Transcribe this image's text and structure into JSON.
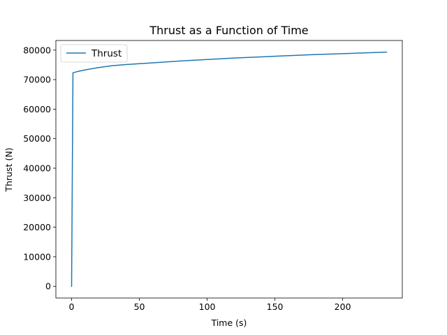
{
  "chart_data": {
    "type": "line",
    "title": "Thrust as a Function of Time",
    "xlabel": "Time (s)",
    "ylabel": "Thrust (N)",
    "xlim": [
      -11.6,
      244.0
    ],
    "ylim": [
      -3965,
      83250
    ],
    "grid": false,
    "legend_placement": "upper-left",
    "x_ticks": [
      0,
      50,
      100,
      150,
      200
    ],
    "x_tick_labels": [
      "0",
      "50",
      "100",
      "150",
      "200"
    ],
    "y_ticks": [
      0,
      10000,
      20000,
      30000,
      40000,
      50000,
      60000,
      70000,
      80000
    ],
    "y_tick_labels": [
      "0",
      "10000",
      "20000",
      "30000",
      "40000",
      "50000",
      "60000",
      "70000",
      "80000"
    ],
    "series": [
      {
        "name": "Thrust",
        "color": "#1f77b4",
        "x": [
          0,
          1,
          5,
          10,
          20,
          30,
          40,
          50,
          60,
          80,
          100,
          120,
          140,
          160,
          180,
          200,
          220,
          232.4
        ],
        "y": [
          0,
          72300,
          72800,
          73300,
          74100,
          74700,
          75100,
          75400,
          75700,
          76300,
          76800,
          77300,
          77700,
          78100,
          78500,
          78800,
          79100,
          79300
        ]
      }
    ]
  }
}
